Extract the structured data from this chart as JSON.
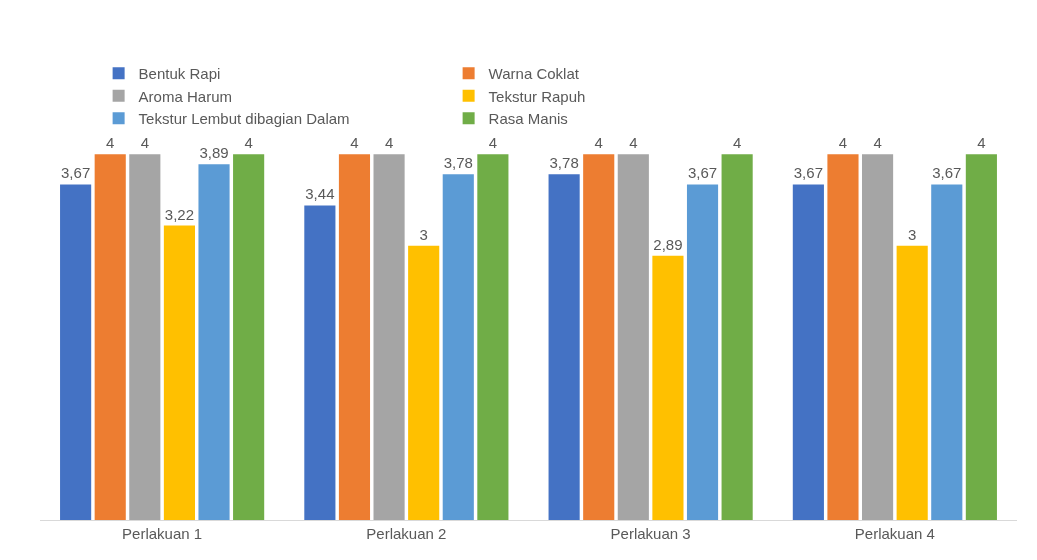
{
  "chart_data": {
    "type": "bar",
    "categories": [
      "Perlakuan 1",
      "Perlakuan 2",
      "Perlakuan 3",
      "Perlakuan 4"
    ],
    "series": [
      {
        "name": "Bentuk Rapi",
        "color": "#4472c4",
        "values": [
          3.67,
          3.44,
          3.78,
          3.67
        ],
        "value_labels": [
          "3,67",
          "3,44",
          "3,78",
          "3,67"
        ]
      },
      {
        "name": "Warna Coklat",
        "color": "#ed7d31",
        "values": [
          4,
          4,
          4,
          4
        ],
        "value_labels": [
          "4",
          "4",
          "4",
          "4"
        ]
      },
      {
        "name": "Aroma Harum",
        "color": "#a5a5a5",
        "values": [
          4,
          4,
          4,
          4
        ],
        "value_labels": [
          "4",
          "4",
          "4",
          "4"
        ]
      },
      {
        "name": "Tekstur Rapuh",
        "color": "#ffc000",
        "values": [
          3.22,
          3,
          2.89,
          3
        ],
        "value_labels": [
          "3,22",
          "3",
          "2,89",
          "3"
        ]
      },
      {
        "name": "Tekstur Lembut dibagian Dalam",
        "color": "#5b9bd5",
        "values": [
          3.89,
          3.78,
          3.67,
          3.67
        ],
        "value_labels": [
          "3,89",
          "3,78",
          "3,67",
          "3,67"
        ]
      },
      {
        "name": "Rasa Manis",
        "color": "#70ad47",
        "values": [
          4,
          4,
          4,
          4
        ],
        "value_labels": [
          "4",
          "4",
          "4",
          "4"
        ]
      }
    ],
    "grid": false,
    "legend": "top"
  }
}
